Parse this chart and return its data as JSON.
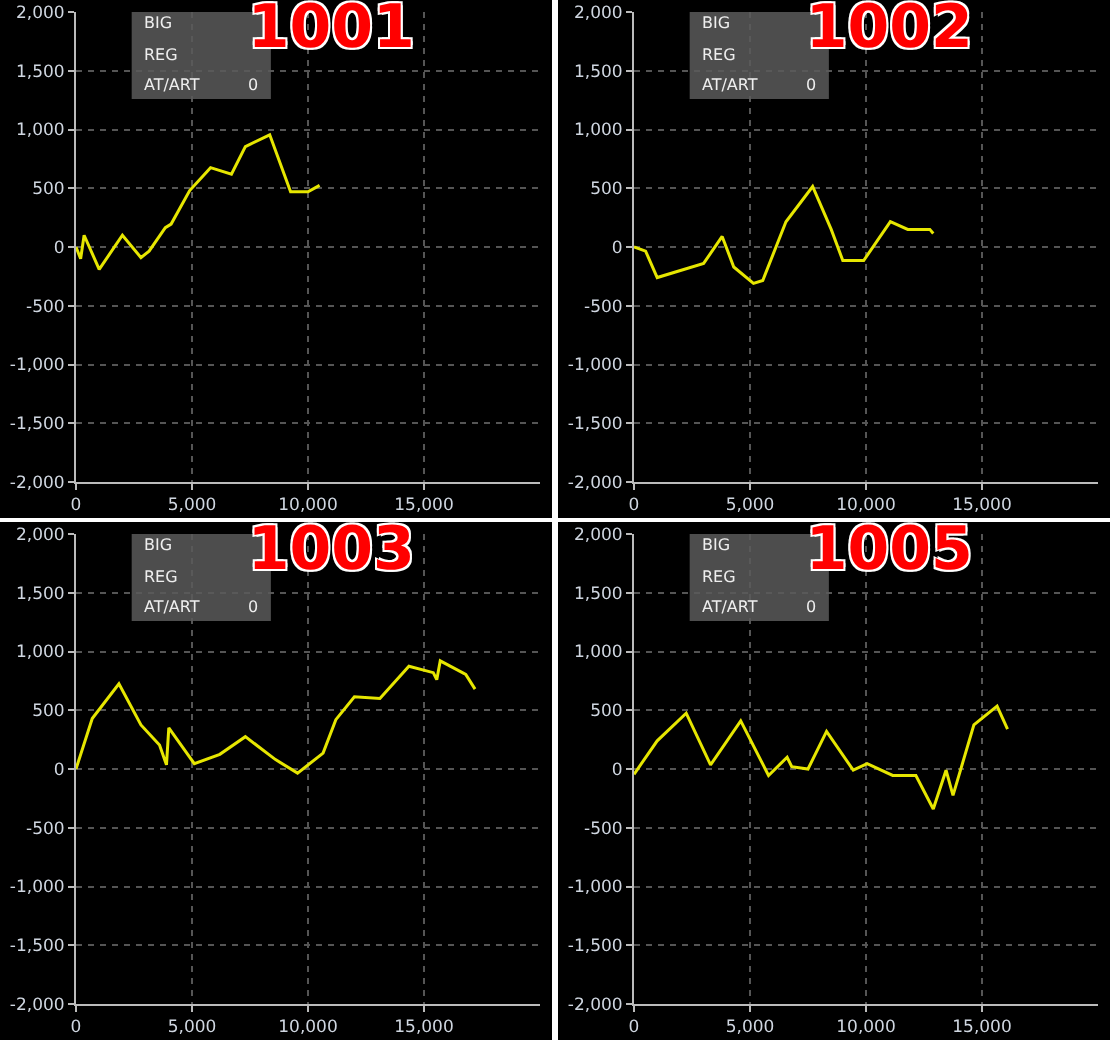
{
  "chart_data": [
    {
      "type": "line",
      "title": "1001",
      "annotations": [
        "BIG",
        "REG",
        "AT/ART",
        "0"
      ],
      "grid": true,
      "marker": "none",
      "line_style": "solid",
      "x": [
        0,
        200,
        350,
        1000,
        2000,
        2800,
        3150,
        3850,
        4100,
        4900,
        5800,
        6700,
        7300,
        8350,
        9250,
        10000,
        10500
      ],
      "series": [
        {
          "color": "#e6e600",
          "values": [
            0,
            -100,
            100,
            -190,
            100,
            -90,
            -35,
            165,
            195,
            480,
            675,
            620,
            855,
            955,
            470,
            470,
            525
          ]
        }
      ],
      "xlim": [
        0,
        20000
      ],
      "xticks": [
        {
          "value": 0,
          "label": "0"
        },
        {
          "value": 5000,
          "label": "5,000"
        },
        {
          "value": 10000,
          "label": "10,000"
        },
        {
          "value": 15000,
          "label": "15,000"
        }
      ],
      "ylim": [
        -2000,
        2000
      ],
      "yticks": [
        {
          "value": -2000,
          "label": "-2,000"
        },
        {
          "value": -1500,
          "label": "-1,500"
        },
        {
          "value": -1000,
          "label": "-1,000"
        },
        -500,
        0,
        500,
        {
          "value": 1000,
          "label": "1,000"
        },
        {
          "value": 1500,
          "label": "1,500"
        },
        {
          "value": 2000,
          "label": "2,000"
        }
      ]
    },
    {
      "type": "line",
      "title": "1002",
      "annotations": [
        "BIG",
        "REG",
        "AT/ART",
        "0"
      ],
      "grid": true,
      "marker": "none",
      "line_style": "solid",
      "x": [
        0,
        500,
        1000,
        3000,
        3800,
        4300,
        5150,
        5550,
        6550,
        7700,
        8500,
        9000,
        9900,
        11050,
        11800,
        12750,
        12900
      ],
      "series": [
        {
          "color": "#e6e600",
          "values": [
            0,
            -35,
            -260,
            -140,
            90,
            -170,
            -310,
            -285,
            215,
            515,
            150,
            -115,
            -115,
            215,
            150,
            150,
            115
          ]
        }
      ],
      "xlim": [
        0,
        20000
      ],
      "xticks": [
        {
          "value": 0,
          "label": "0"
        },
        {
          "value": 5000,
          "label": "5,000"
        },
        {
          "value": 10000,
          "label": "10,000"
        },
        {
          "value": 15000,
          "label": "15,000"
        }
      ],
      "ylim": [
        -2000,
        2000
      ],
      "yticks": [
        {
          "value": -2000,
          "label": "-2,000"
        },
        {
          "value": -1500,
          "label": "-1,500"
        },
        {
          "value": -1000,
          "label": "-1,000"
        },
        -500,
        0,
        500,
        {
          "value": 1000,
          "label": "1,000"
        },
        {
          "value": 1500,
          "label": "1,500"
        },
        {
          "value": 2000,
          "label": "2,000"
        }
      ]
    },
    {
      "type": "line",
      "title": "1003",
      "annotations": [
        "BIG",
        "REG",
        "AT/ART",
        "0"
      ],
      "grid": true,
      "marker": "none",
      "line_style": "solid",
      "x": [
        0,
        700,
        1850,
        2800,
        3600,
        3900,
        4000,
        5100,
        6200,
        7300,
        8600,
        9550,
        10650,
        11200,
        12000,
        13100,
        14350,
        15400,
        15550,
        15700,
        16800,
        17200
      ],
      "series": [
        {
          "color": "#e6e600",
          "values": [
            0,
            430,
            725,
            375,
            205,
            35,
            350,
            45,
            125,
            275,
            80,
            -35,
            135,
            420,
            615,
            600,
            875,
            820,
            760,
            920,
            805,
            680
          ]
        }
      ],
      "xlim": [
        0,
        20000
      ],
      "xticks": [
        {
          "value": 0,
          "label": "0"
        },
        {
          "value": 5000,
          "label": "5,000"
        },
        {
          "value": 10000,
          "label": "10,000"
        },
        {
          "value": 15000,
          "label": "15,000"
        }
      ],
      "ylim": [
        -2000,
        2000
      ],
      "yticks": [
        {
          "value": -2000,
          "label": "-2,000"
        },
        {
          "value": -1500,
          "label": "-1,500"
        },
        {
          "value": -1000,
          "label": "-1,000"
        },
        -500,
        0,
        500,
        {
          "value": 1000,
          "label": "1,000"
        },
        {
          "value": 1500,
          "label": "1,500"
        },
        {
          "value": 2000,
          "label": "2,000"
        }
      ]
    },
    {
      "type": "line",
      "title": "1005",
      "annotations": [
        "BIG",
        "REG",
        "AT/ART",
        "0"
      ],
      "grid": true,
      "marker": "none",
      "line_style": "solid",
      "x": [
        0,
        1000,
        2250,
        3300,
        4600,
        5800,
        6600,
        6800,
        7500,
        8300,
        9450,
        10050,
        11150,
        12150,
        12900,
        13450,
        13750,
        14650,
        15650,
        16100
      ],
      "series": [
        {
          "color": "#e6e600",
          "values": [
            -45,
            240,
            475,
            35,
            410,
            -55,
            100,
            20,
            0,
            320,
            -10,
            45,
            -55,
            -55,
            -340,
            -10,
            -225,
            375,
            535,
            340
          ]
        }
      ],
      "xlim": [
        0,
        20000
      ],
      "xticks": [
        {
          "value": 0,
          "label": "0"
        },
        {
          "value": 5000,
          "label": "5,000"
        },
        {
          "value": 10000,
          "label": "10,000"
        },
        {
          "value": 15000,
          "label": "15,000"
        }
      ],
      "ylim": [
        -2000,
        2000
      ],
      "yticks": [
        {
          "value": -2000,
          "label": "-2,000"
        },
        {
          "value": -1500,
          "label": "-1,500"
        },
        {
          "value": -1000,
          "label": "-1,000"
        },
        -500,
        0,
        500,
        {
          "value": 1000,
          "label": "1,000"
        },
        {
          "value": 1500,
          "label": "1,500"
        },
        {
          "value": 2000,
          "label": "2,000"
        }
      ]
    }
  ]
}
